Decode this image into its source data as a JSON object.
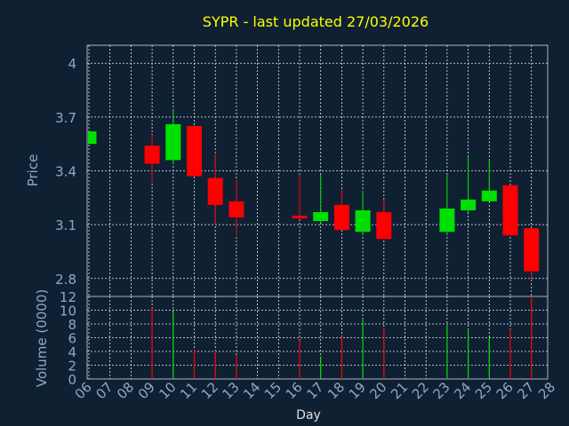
{
  "chart_data": [
    {
      "type": "candlestick",
      "title": "SYPR - last updated 27/03/2026",
      "ylabel": "Price",
      "xlabel": "Day",
      "ylim": [
        2.7,
        4.1
      ],
      "yticks": [
        "4",
        "3.7",
        "3.4",
        "3.1",
        "2.8"
      ],
      "ytick_values": [
        4.0,
        3.7,
        3.4,
        3.1,
        2.8
      ],
      "grid": true,
      "colors": {
        "up": "#00e000",
        "down": "#ff0000"
      },
      "candles": [
        {
          "day": "06",
          "open": 3.55,
          "high": 3.62,
          "low": 3.55,
          "close": 3.62
        },
        {
          "day": "09",
          "open": 3.54,
          "high": 3.6,
          "low": 3.34,
          "close": 3.44
        },
        {
          "day": "10",
          "open": 3.46,
          "high": 3.74,
          "low": 3.44,
          "close": 3.66
        },
        {
          "day": "11",
          "open": 3.65,
          "high": 3.65,
          "low": 3.37,
          "close": 3.37
        },
        {
          "day": "12",
          "open": 3.36,
          "high": 3.5,
          "low": 3.1,
          "close": 3.21
        },
        {
          "day": "13",
          "open": 3.23,
          "high": 3.35,
          "low": 3.04,
          "close": 3.14
        },
        {
          "day": "16",
          "open": 3.15,
          "high": 3.38,
          "low": 3.13,
          "close": 3.14
        },
        {
          "day": "17",
          "open": 3.12,
          "high": 3.38,
          "low": 3.11,
          "close": 3.17
        },
        {
          "day": "18",
          "open": 3.21,
          "high": 3.3,
          "low": 3.07,
          "close": 3.07
        },
        {
          "day": "19",
          "open": 3.06,
          "high": 3.29,
          "low": 3.04,
          "close": 3.18
        },
        {
          "day": "20",
          "open": 3.17,
          "high": 3.24,
          "low": 3.02,
          "close": 3.02
        },
        {
          "day": "23",
          "open": 3.06,
          "high": 3.38,
          "low": 3.04,
          "close": 3.19
        },
        {
          "day": "24",
          "open": 3.18,
          "high": 3.48,
          "low": 3.17,
          "close": 3.24
        },
        {
          "day": "25",
          "open": 3.23,
          "high": 3.46,
          "low": 3.23,
          "close": 3.29
        },
        {
          "day": "26",
          "open": 3.32,
          "high": 3.32,
          "low": 3.04,
          "close": 3.04
        },
        {
          "day": "27",
          "open": 3.08,
          "high": 3.08,
          "low": 2.79,
          "close": 2.84
        }
      ]
    },
    {
      "type": "bar",
      "ylabel": "Volume (0000)",
      "ylim": [
        0,
        12
      ],
      "yticks": [
        "12",
        "10",
        "8",
        "6",
        "4",
        "2",
        "0"
      ],
      "ytick_values": [
        12,
        10,
        8,
        6,
        4,
        2,
        0
      ],
      "categories": [
        "06",
        "07",
        "08",
        "09",
        "10",
        "11",
        "12",
        "13",
        "14",
        "15",
        "16",
        "17",
        "18",
        "19",
        "20",
        "21",
        "22",
        "23",
        "24",
        "25",
        "26",
        "27",
        "28"
      ],
      "volumes": [
        {
          "day": "09",
          "value": 10.3,
          "dir": "down"
        },
        {
          "day": "10",
          "value": 9.8,
          "dir": "up"
        },
        {
          "day": "11",
          "value": 4.3,
          "dir": "down"
        },
        {
          "day": "12",
          "value": 4.1,
          "dir": "down"
        },
        {
          "day": "13",
          "value": 3.5,
          "dir": "down"
        },
        {
          "day": "16",
          "value": 5.6,
          "dir": "down"
        },
        {
          "day": "17",
          "value": 3.3,
          "dir": "up"
        },
        {
          "day": "18",
          "value": 6.2,
          "dir": "down"
        },
        {
          "day": "19",
          "value": 8.9,
          "dir": "up"
        },
        {
          "day": "20",
          "value": 7.5,
          "dir": "down"
        },
        {
          "day": "23",
          "value": 8.0,
          "dir": "up"
        },
        {
          "day": "24",
          "value": 7.2,
          "dir": "up"
        },
        {
          "day": "25",
          "value": 6.0,
          "dir": "up"
        },
        {
          "day": "26",
          "value": 7.2,
          "dir": "down"
        },
        {
          "day": "27",
          "value": 12.0,
          "dir": "down"
        }
      ]
    }
  ]
}
